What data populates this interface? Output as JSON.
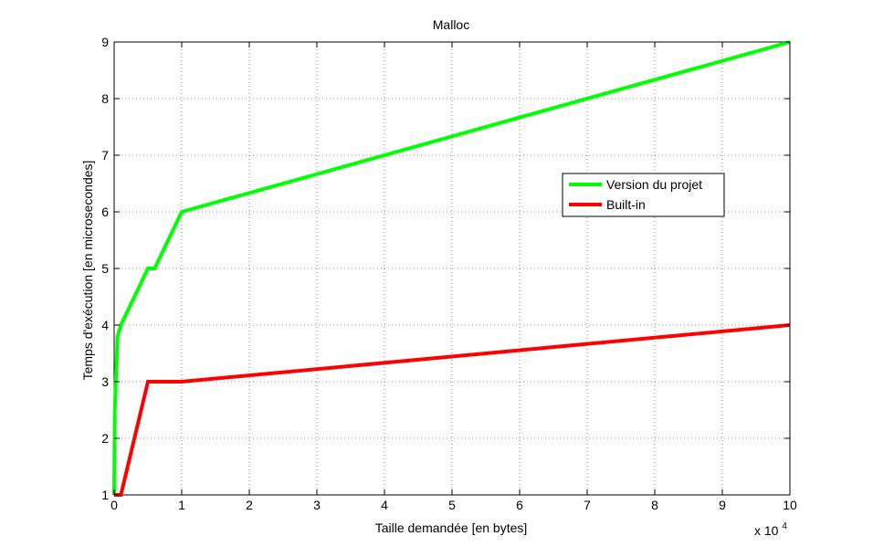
{
  "chart_data": {
    "type": "line",
    "title": "Malloc",
    "xlabel": "Taille demandée [en bytes]",
    "ylabel": "Temps d'exécution [en microsecondes]",
    "x_multiplier_label": "x 10",
    "x_multiplier_exponent": "4",
    "xlim": [
      0,
      10
    ],
    "ylim": [
      1,
      9
    ],
    "x_ticks": [
      "0",
      "1",
      "2",
      "3",
      "4",
      "5",
      "6",
      "7",
      "8",
      "9",
      "10"
    ],
    "y_ticks": [
      "1",
      "2",
      "3",
      "4",
      "5",
      "6",
      "7",
      "8",
      "9"
    ],
    "grid": true,
    "legend_position": "right",
    "series": [
      {
        "name": "Version du projet",
        "color": "#00ff00",
        "x": [
          0,
          0.01,
          0.05,
          0.1,
          0.5,
          0.6,
          1,
          10
        ],
        "y": [
          1,
          2.5,
          3.8,
          4,
          5,
          5,
          6,
          9
        ]
      },
      {
        "name": "Built-in",
        "color": "#ff0000",
        "x": [
          0,
          0.1,
          0.5,
          1,
          10
        ],
        "y": [
          1,
          1,
          3,
          3,
          4
        ]
      }
    ]
  }
}
